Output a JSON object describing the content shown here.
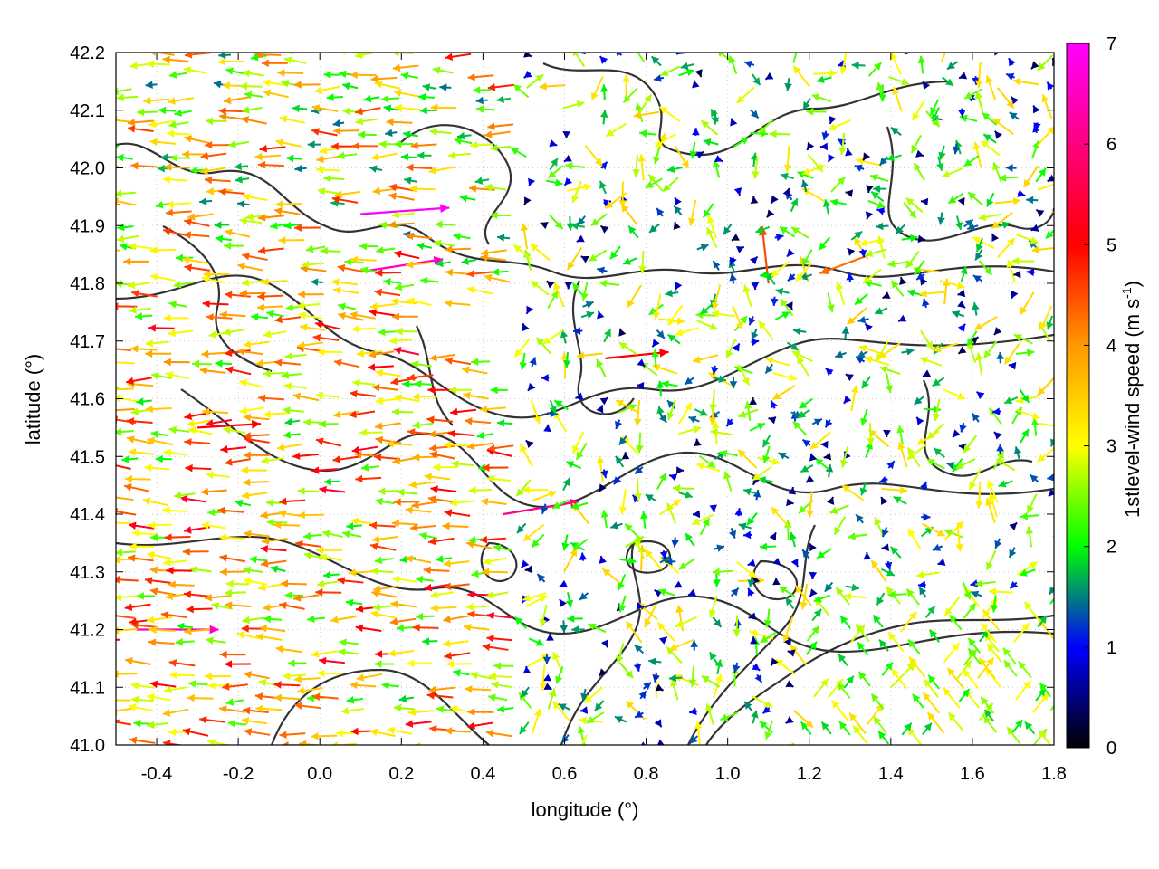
{
  "chart_data": {
    "type": "vector-field",
    "xlabel": "longitude (°)",
    "ylabel": "latitude (°)",
    "xlim": [
      -0.5,
      1.8
    ],
    "ylim": [
      41.0,
      42.2
    ],
    "xticks": [
      "-0.4",
      "-0.2",
      "0.0",
      "0.2",
      "0.4",
      "0.6",
      "0.8",
      "1.0",
      "1.2",
      "1.4",
      "1.6",
      "1.8"
    ],
    "yticks": [
      "41.0",
      "41.1",
      "41.2",
      "41.3",
      "41.4",
      "41.5",
      "41.6",
      "41.7",
      "41.8",
      "41.9",
      "42.0",
      "42.1",
      "42.2"
    ],
    "grid": true,
    "colorbar": {
      "label": "1stlevel-wind speed (m s",
      "label_sup": "-1",
      "label_end": ")",
      "range": [
        0,
        7
      ],
      "ticks": [
        "0",
        "1",
        "2",
        "3",
        "4",
        "5",
        "6",
        "7"
      ],
      "colors": [
        "#000000",
        "#0000ff",
        "#00ff00",
        "#ffff00",
        "#ff9900",
        "#ff0000",
        "#ff00ff"
      ]
    },
    "contour_color": "#333333",
    "vectors": [
      {
        "lon": -0.45,
        "lat": 41.2,
        "u": 6.5,
        "v": 0.0
      },
      {
        "lon": -0.3,
        "lat": 41.55,
        "u": 5.0,
        "v": 0.3
      },
      {
        "lon": 0.1,
        "lat": 41.92,
        "u": 7.0,
        "v": 0.5
      },
      {
        "lon": 0.1,
        "lat": 41.82,
        "u": 6.5,
        "v": 1.0
      },
      {
        "lon": 0.45,
        "lat": 41.4,
        "u": 6.0,
        "v": 1.0
      },
      {
        "lon": 0.7,
        "lat": 41.67,
        "u": 5.0,
        "v": 0.5
      },
      {
        "lon": 1.1,
        "lat": 41.8,
        "u": -0.5,
        "v": 4.5
      },
      {
        "lon": 1.35,
        "lat": 41.85,
        "u": -4.0,
        "v": -1.5
      },
      {
        "lon": 1.4,
        "lat": 41.1,
        "u": 2.0,
        "v": 2.0
      }
    ]
  }
}
